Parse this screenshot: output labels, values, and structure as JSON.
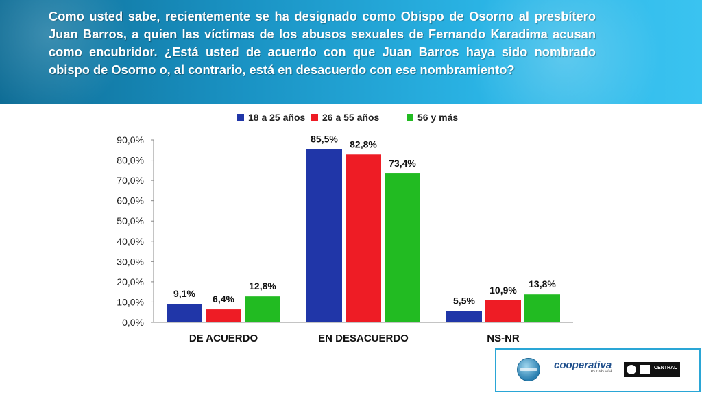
{
  "question": "Como usted sabe, recientemente se ha designado como Obispo de Osorno al presbítero Juan Barros, a quien las víctimas de los abusos sexuales de Fernando Karadima acusan como encubridor.  ¿Está usted de acuerdo con que Juan Barros haya sido nombrado obispo de Osorno o, al contrario, está en desacuerdo con ese nombramiento?",
  "chart_data": {
    "type": "bar",
    "categories": [
      "DE ACUERDO",
      "EN DESACUERDO",
      "NS-NR"
    ],
    "series": [
      {
        "name": "18 a 25 años",
        "color": "#2036a8",
        "values": [
          9.1,
          85.5,
          5.5
        ],
        "labels": [
          "9,1%",
          "85,5%",
          "5,5%"
        ]
      },
      {
        "name": "26 a 55 años",
        "color": "#ee1c25",
        "values": [
          6.4,
          82.8,
          10.9
        ],
        "labels": [
          "6,4%",
          "82,8%",
          "10,9%"
        ]
      },
      {
        "name": "56 y más",
        "color": "#22bb22",
        "values": [
          12.8,
          73.4,
          13.8
        ],
        "labels": [
          "12,8%",
          "73,4%",
          "13,8%"
        ]
      }
    ],
    "yticks": [
      "0,0%",
      "10,0%",
      "20,0%",
      "30,0%",
      "40,0%",
      "50,0%",
      "60,0%",
      "70,0%",
      "80,0%",
      "90,0%"
    ],
    "ylim": [
      0,
      90
    ],
    "legend_position": "top",
    "grid": false
  },
  "logos": {
    "coop_name": "cooperativa",
    "coop_tagline": "es más allá",
    "university": "CENTRAL"
  }
}
